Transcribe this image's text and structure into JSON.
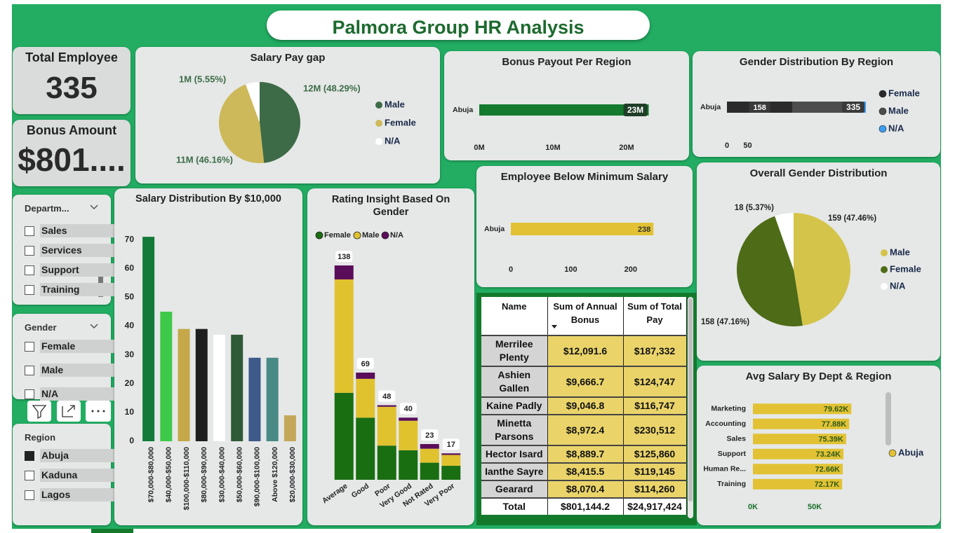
{
  "title": "Palmora Group HR Analysis",
  "cards": [
    {
      "label": "Total Employee",
      "value": "335"
    },
    {
      "label": "Bonus Amount",
      "value": "$801...."
    }
  ],
  "slicers": [
    {
      "title": "Departm...",
      "items": [
        {
          "label": "Sales",
          "checked": false
        },
        {
          "label": "Services",
          "checked": false
        },
        {
          "label": "Support",
          "checked": false
        },
        {
          "label": "Training",
          "checked": false
        }
      ]
    },
    {
      "title": "Gender",
      "items": [
        {
          "label": "Female",
          "checked": false
        },
        {
          "label": "Male",
          "checked": false
        },
        {
          "label": "N/A",
          "checked": false
        }
      ]
    },
    {
      "title": "Region",
      "items": [
        {
          "label": "Abuja",
          "checked": true
        },
        {
          "label": "Kaduna",
          "checked": false
        },
        {
          "label": "Lagos",
          "checked": false
        }
      ]
    }
  ],
  "table": {
    "headers": [
      "Name",
      "Sum of Annual Bonus",
      "Sum of Total Pay"
    ],
    "rows": [
      [
        "Merrilee Plenty",
        "$12,091.6",
        "$187,332"
      ],
      [
        "Ashien Gallen",
        "$9,666.7",
        "$124,747"
      ],
      [
        "Kaine Padly",
        "$9,046.8",
        "$116,747"
      ],
      [
        "Minetta Parsons",
        "$8,972.4",
        "$230,512"
      ],
      [
        "Hector Isard",
        "$8,889.7",
        "$125,860"
      ],
      [
        "Ianthe Sayre",
        "$8,415.5",
        "$119,145"
      ],
      [
        "Gearard",
        "$8,070.4",
        "$114,260"
      ]
    ],
    "total": [
      "Total",
      "$801,144.2",
      "$24,917,424"
    ]
  },
  "chart_data": [
    {
      "type": "pie",
      "title": "Salary Pay gap",
      "categories": [
        "Male",
        "Female",
        "N/A"
      ],
      "values": [
        48.29,
        46.16,
        5.55
      ],
      "value_labels": [
        "12M (48.29%)",
        "11M (46.16%)",
        "1M (5.55%)"
      ],
      "colors": [
        "#3d6b47",
        "#cdb95a",
        "#ffffff"
      ]
    },
    {
      "type": "bar",
      "orientation": "horizontal",
      "title": "Bonus Payout Per Region",
      "categories": [
        "Abuja"
      ],
      "values": [
        23000000
      ],
      "value_labels": [
        "23M"
      ],
      "color": "#137a2e",
      "xlim": [
        0,
        26000000
      ],
      "xticks": [
        {
          "value": 0,
          "label": "0M"
        },
        {
          "value": 10000000,
          "label": "10M"
        },
        {
          "value": 20000000,
          "label": "20M"
        }
      ]
    },
    {
      "type": "bar",
      "orientation": "horizontal",
      "stacked": true,
      "title": "Gender Distribution By Region",
      "categories": [
        "Abuja"
      ],
      "series": [
        {
          "name": "Female",
          "color": "#2b2b2b",
          "values": [
            158
          ]
        },
        {
          "name": "Male",
          "color": "#4d4d4d",
          "values": [
            159
          ]
        },
        {
          "name": "N/A",
          "color": "#3b9cf0",
          "values": [
            18
          ]
        }
      ],
      "totals": [
        335
      ],
      "xlim": [
        0,
        340
      ],
      "xticks": [
        0,
        50
      ]
    },
    {
      "type": "bar",
      "orientation": "horizontal",
      "title": "Employee Below Minimum Salary",
      "categories": [
        "Abuja"
      ],
      "values": [
        238
      ],
      "color": "#e2c234",
      "xlim": [
        0,
        260
      ],
      "xticks": [
        0,
        100,
        200
      ]
    },
    {
      "type": "pie",
      "title": "Overall Gender Distribution",
      "categories": [
        "Male",
        "Female",
        "N/A"
      ],
      "values": [
        159,
        158,
        18
      ],
      "value_labels": [
        "159 (47.46%)",
        "158 (47.16%)",
        "18 (5.37%)"
      ],
      "colors": [
        "#d4c44a",
        "#4e6b17",
        "#ffffff"
      ]
    },
    {
      "type": "bar",
      "orientation": "vertical",
      "title": "Salary Distribution By $10,000",
      "categories": [
        "$70,000-$80,000",
        "$40,000-$50,000",
        "$100,000-$110,000",
        "$80,000-$90,000",
        "$30,000-$40,000",
        "$50,000-$60,000",
        "$90,000-$100,000",
        "Above $120,000",
        "$20,000-$30,000"
      ],
      "values": [
        71,
        45,
        39,
        39,
        37,
        37,
        29,
        29,
        9
      ],
      "colors": [
        "#137a3a",
        "#3ec94a",
        "#c4a84a",
        "#1e1e1e",
        "#ffffff",
        "#2f5a38",
        "#3d5a8a",
        "#4a8a84",
        "#c4a85a"
      ],
      "ylim": [
        0,
        72
      ],
      "yticks": [
        0,
        10,
        20,
        30,
        40,
        50,
        60,
        70
      ]
    },
    {
      "type": "bar",
      "orientation": "vertical",
      "stacked": true,
      "title": "Rating Insight Based On Gender",
      "categories": [
        "Average",
        "Good",
        "Poor",
        "Very Good",
        "Not Rated",
        "Very Poor"
      ],
      "series": [
        {
          "name": "Female",
          "color": "#1a6e12",
          "values": [
            56,
            40,
            22,
            19,
            11,
            9
          ]
        },
        {
          "name": "Male",
          "color": "#e0c22e",
          "values": [
            73,
            25,
            25,
            19,
            9,
            7
          ]
        },
        {
          "name": "N/A",
          "color": "#5a0e5a",
          "values": [
            9,
            4,
            1,
            2,
            3,
            1
          ]
        }
      ],
      "totals": [
        138,
        69,
        48,
        40,
        23,
        17
      ]
    },
    {
      "type": "bar",
      "orientation": "horizontal",
      "title": "Avg Salary By Dept & Region",
      "categories": [
        "Marketing",
        "Accounting",
        "Sales",
        "Support",
        "Human Re...",
        "Training"
      ],
      "series": [
        {
          "name": "Abuja",
          "color": "#e2c234",
          "values": [
            79620,
            77880,
            75390,
            73240,
            72660,
            72170
          ],
          "value_labels": [
            "79.62K",
            "77.88K",
            "75.39K",
            "73.24K",
            "72.66K",
            "72.17K"
          ]
        }
      ],
      "xlim": [
        0,
        105000
      ],
      "xticks": [
        {
          "value": 0,
          "label": "0K"
        },
        {
          "value": 50000,
          "label": "50K"
        }
      ]
    }
  ]
}
